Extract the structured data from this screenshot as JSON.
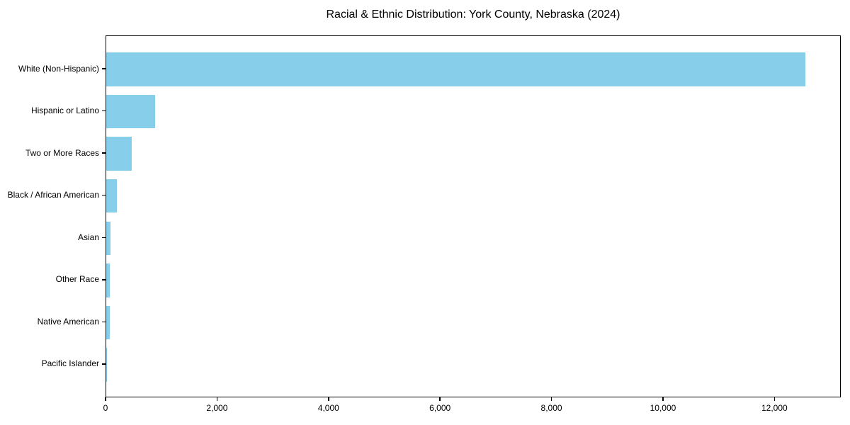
{
  "title": "Racial & Ethnic Distribution: York County, Nebraska (2024)",
  "colors": {
    "bar": "#87CEEB",
    "text": "#000000",
    "frame": "#000000",
    "background": "#ffffff"
  },
  "chart_data": {
    "type": "bar",
    "orientation": "horizontal",
    "title": "Racial & Ethnic Distribution: York County, Nebraska (2024)",
    "xlabel": "",
    "ylabel": "",
    "categories": [
      "White (Non-Hispanic)",
      "Hispanic or Latino",
      "Two or More Races",
      "Black / African American",
      "Asian",
      "Other Race",
      "Native American",
      "Pacific Islander"
    ],
    "values": [
      12540,
      875,
      455,
      190,
      75,
      65,
      60,
      5
    ],
    "xlim": [
      0,
      13190
    ],
    "x_ticks": [
      0,
      2000,
      4000,
      6000,
      8000,
      10000,
      12000
    ],
    "x_tick_labels": [
      "0",
      "2,000",
      "4,000",
      "6,000",
      "8,000",
      "10,000",
      "12,000"
    ],
    "bar_color": "#87CEEB",
    "grid": false,
    "legend": "none"
  }
}
